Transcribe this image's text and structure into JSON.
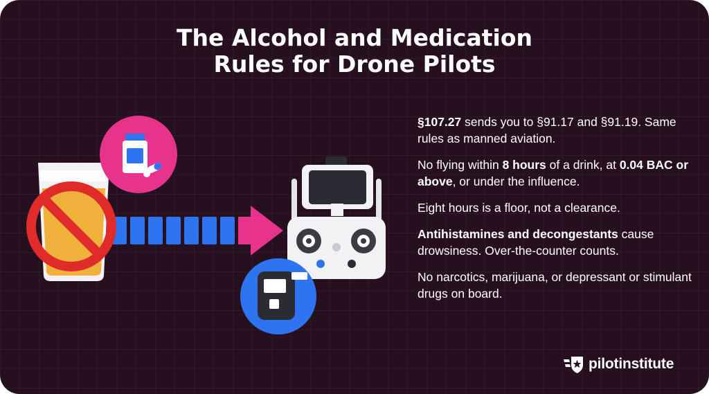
{
  "title": {
    "line1": "The Alcohol and Medication",
    "line2": "Rules for Drone Pilots"
  },
  "rules": [
    {
      "parts": [
        {
          "text": "§107.27",
          "bold": true
        },
        {
          "text": " sends you to §91.17 and §91.19. Same rules as manned aviation.",
          "bold": false
        }
      ]
    },
    {
      "parts": [
        {
          "text": "No flying within ",
          "bold": false
        },
        {
          "text": "8 hours",
          "bold": true
        },
        {
          "text": " of a drink, at ",
          "bold": false
        },
        {
          "text": "0.04 BAC or above",
          "bold": true
        },
        {
          "text": ", or under the influence.",
          "bold": false
        }
      ]
    },
    {
      "parts": [
        {
          "text": "Eight hours is a floor, not a clearance.",
          "bold": false
        }
      ]
    },
    {
      "parts": [
        {
          "text": "Antihistamines and decongestants",
          "bold": true
        },
        {
          "text": " cause drowsiness. Over-the-counter counts.",
          "bold": false
        }
      ]
    },
    {
      "parts": [
        {
          "text": "No narcotics, marijuana, or depressant or stimulant drugs on board.",
          "bold": false
        }
      ]
    }
  ],
  "brand": {
    "name": "pilotinstitute",
    "icon": "pilot-institute-logo-icon"
  },
  "icons": {
    "pill_bottle": "pill-bottle-icon",
    "beer_glass": "beer-glass-icon",
    "prohibited": "prohibited-icon",
    "arrow": "arrow-right-icon",
    "controller": "drone-controller-icon",
    "breathalyzer": "breathalyzer-icon"
  },
  "colors": {
    "background": "#26101f",
    "pink": "#e8338c",
    "blue": "#2e74f0",
    "red": "#e02b2b",
    "beer": "#f0b03c"
  }
}
